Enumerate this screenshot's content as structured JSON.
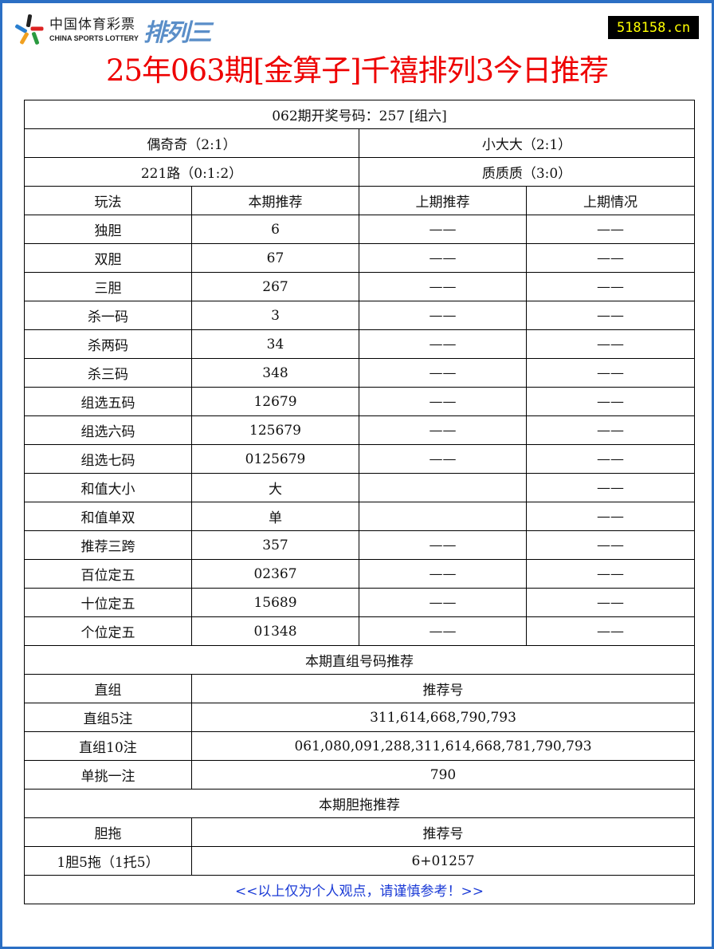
{
  "header": {
    "logo_cn": "中国体育彩票",
    "logo_en": "CHINA SPORTS LOTTERY",
    "logo_game": "排列三",
    "site": "518158.cn",
    "title": "25年063期[金算子]千禧排列3今日推荐"
  },
  "summary": {
    "draw": "062期开奖号码：257 [组六]",
    "odd_even": "偶奇奇（2:1）",
    "size": "小大大（2:1）",
    "road": "221路（0:1:2）",
    "prime": "质质质（3:0）"
  },
  "columns": [
    "玩法",
    "本期推荐",
    "上期推荐",
    "上期情况"
  ],
  "rows": [
    [
      "独胆",
      "6",
      "——",
      "——"
    ],
    [
      "双胆",
      "67",
      "——",
      "——"
    ],
    [
      "三胆",
      "267",
      "——",
      "——"
    ],
    [
      "杀一码",
      "3",
      "——",
      "——"
    ],
    [
      "杀两码",
      "34",
      "——",
      "——"
    ],
    [
      "杀三码",
      "348",
      "——",
      "——"
    ],
    [
      "组选五码",
      "12679",
      "——",
      "——"
    ],
    [
      "组选六码",
      "125679",
      "——",
      "——"
    ],
    [
      "组选七码",
      "0125679",
      "——",
      "——"
    ],
    [
      "和值大小",
      "大",
      "",
      "——"
    ],
    [
      "和值单双",
      "单",
      "",
      "——"
    ],
    [
      "推荐三跨",
      "357",
      "——",
      "——"
    ],
    [
      "百位定五",
      "02367",
      "——",
      "——"
    ],
    [
      "十位定五",
      "15689",
      "——",
      "——"
    ],
    [
      "个位定五",
      "01348",
      "——",
      "——"
    ]
  ],
  "direct": {
    "section": "本期直组号码推荐",
    "col1": "直组",
    "col2": "推荐号",
    "rows": [
      [
        "直组5注",
        "311,614,668,790,793"
      ],
      [
        "直组10注",
        "061,080,091,288,311,614,668,781,790,793"
      ],
      [
        "单挑一注",
        "790"
      ]
    ]
  },
  "dantuo": {
    "section": "本期胆拖推荐",
    "col1": "胆拖",
    "col2": "推荐号",
    "rows": [
      [
        "1胆5拖（1托5）",
        "6+01257"
      ]
    ]
  },
  "footer": "<<以上仅为个人观点，请谨慎参考！>>"
}
